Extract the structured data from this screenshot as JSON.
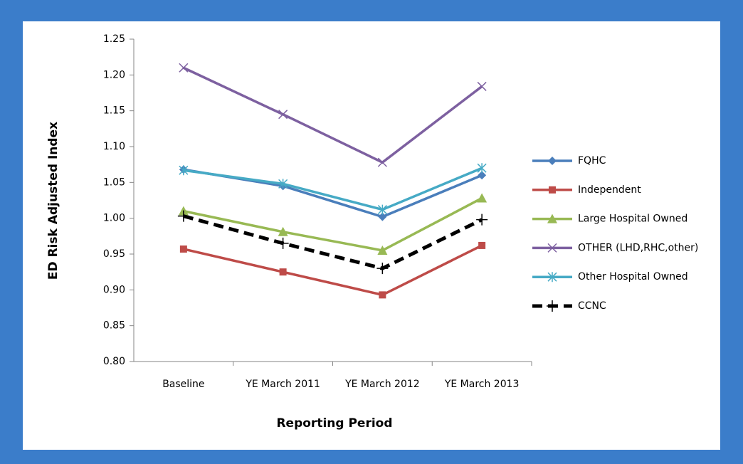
{
  "chart_data": {
    "type": "line",
    "x_label": "Reporting Period",
    "y_label": "ED Risk Adjusted Index",
    "categories": [
      "Baseline",
      "YE March 2011",
      "YE March 2012",
      "YE March 2013"
    ],
    "series": [
      {
        "name": "FQHC",
        "color": "#4a7ebb",
        "marker": "diamond",
        "values": [
          1.068,
          1.045,
          1.002,
          1.06
        ]
      },
      {
        "name": "Independent",
        "color": "#be4b48",
        "marker": "square",
        "values": [
          0.957,
          0.925,
          0.893,
          0.962
        ]
      },
      {
        "name": "Large Hospital Owned",
        "color": "#98b954",
        "marker": "triangle",
        "values": [
          1.01,
          0.981,
          0.955,
          1.028
        ]
      },
      {
        "name": "OTHER (LHD,RHC,other)",
        "color": "#7d60a0",
        "marker": "x",
        "values": [
          1.21,
          1.145,
          1.078,
          1.184
        ]
      },
      {
        "name": "Other Hospital Owned",
        "color": "#46aac5",
        "marker": "asterisk",
        "values": [
          1.067,
          1.048,
          1.012,
          1.07
        ]
      },
      {
        "name": "CCNC",
        "color": "#000000",
        "marker": "plus",
        "dashed": true,
        "values": [
          1.003,
          0.965,
          0.93,
          0.998
        ]
      }
    ],
    "ylim": [
      0.8,
      1.25
    ],
    "yticks": [
      {
        "value": 0.8,
        "label": "0.80"
      },
      0.85,
      {
        "value": 0.9,
        "label": "0.90"
      },
      0.95,
      {
        "value": 1.0,
        "label": "1.00"
      },
      1.05,
      {
        "value": 1.1,
        "label": "1.10"
      },
      1.15,
      {
        "value": 1.2,
        "label": "1.20"
      },
      1.25
    ],
    "legend": "right"
  }
}
